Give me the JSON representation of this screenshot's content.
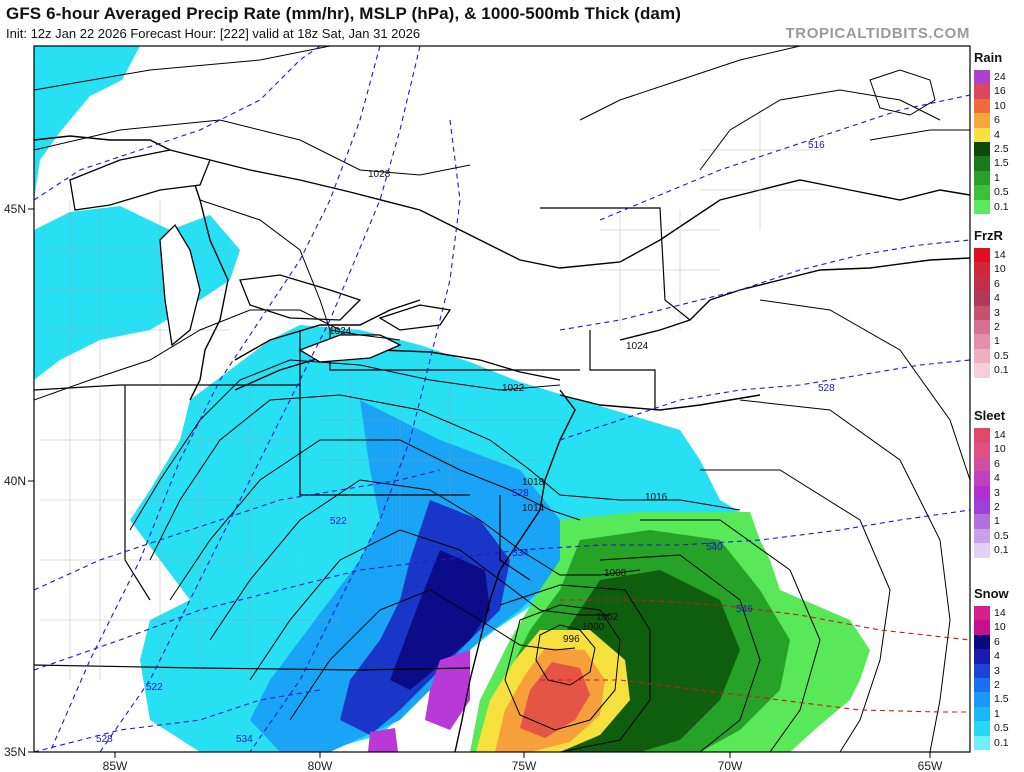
{
  "header": {
    "title": "GFS 6-hour Averaged Precip Rate (mm/hr), MSLP (hPa), & 1000-500mb Thick (dam)",
    "subtitle": "Init: 12z Jan 22 2026   Forecast Hour: [222]   valid at 18z Sat, Jan 31 2026",
    "brand": "TROPICALTIDBITS.COM"
  },
  "axes": {
    "lon_labels": [
      "85W",
      "80W",
      "75W",
      "70W",
      "65W"
    ],
    "lat_labels": [
      "45N",
      "40N",
      "35N"
    ]
  },
  "isobar_labels": [
    "1028",
    "1024",
    "1024",
    "1022",
    "1018",
    "1016",
    "1014",
    "1008",
    "1002",
    "1000",
    "996"
  ],
  "thickness_labels": [
    "516",
    "522",
    "522",
    "528",
    "528",
    "528",
    "534",
    "534",
    "540",
    "546"
  ],
  "legend": [
    {
      "title": "Rain",
      "labels": [
        "24",
        "16",
        "10",
        "6",
        "4",
        "2.5",
        "1.5",
        "1",
        "0.5",
        "0.1"
      ],
      "colors": [
        "#b040d0",
        "#d84a5a",
        "#f06a3a",
        "#f5a83a",
        "#f8e040",
        "#0a4a0a",
        "#1a7a1a",
        "#2aa02a",
        "#3cc03c",
        "#5ee85e"
      ]
    },
    {
      "title": "FrzR",
      "labels": [
        "14",
        "10",
        "6",
        "4",
        "3",
        "2",
        "1",
        "0.5",
        "0.1"
      ],
      "colors": [
        "#e01020",
        "#d02838",
        "#c03048",
        "#b03858",
        "#c85070",
        "#d87090",
        "#e490a8",
        "#eeb0c0",
        "#f5d0dc"
      ]
    },
    {
      "title": "Sleet",
      "labels": [
        "14",
        "10",
        "6",
        "4",
        "3",
        "2",
        "1",
        "0.5",
        "0.1"
      ],
      "colors": [
        "#e04868",
        "#e05080",
        "#d050a0",
        "#c040c0",
        "#b030d0",
        "#a040d8",
        "#b070e0",
        "#c8a0ec",
        "#e4d0f6"
      ]
    },
    {
      "title": "Snow",
      "labels": [
        "14",
        "10",
        "6",
        "4",
        "3",
        "2",
        "1.5",
        "1",
        "0.5",
        "0.1"
      ],
      "colors": [
        "#d81e8a",
        "#c8108c",
        "#0a0a80",
        "#1a1ab0",
        "#1a44d8",
        "#1a70f0",
        "#1a98f8",
        "#1ab8f8",
        "#28d6f8",
        "#6ef0f8"
      ]
    }
  ]
}
